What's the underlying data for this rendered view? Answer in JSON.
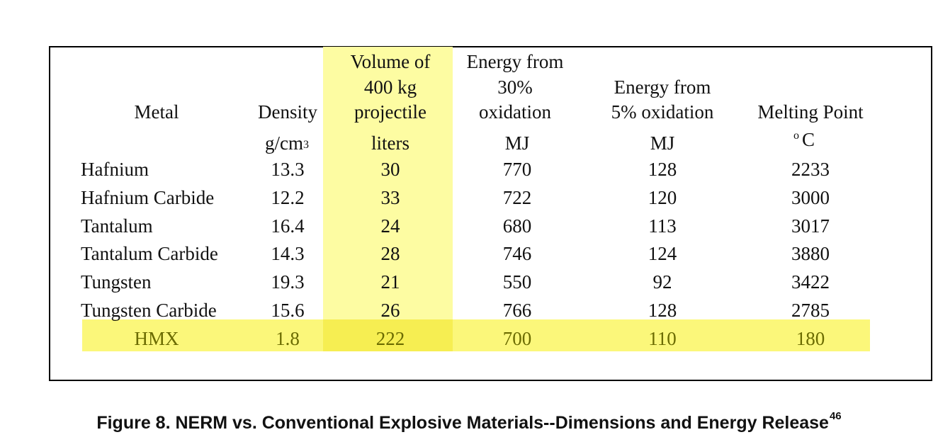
{
  "headers": {
    "metal": "Metal",
    "density": "Density",
    "volume": [
      "Volume of",
      "400 kg",
      "projectile"
    ],
    "energy30": [
      "Energy from",
      "30%",
      "oxidation"
    ],
    "energy5": [
      "Energy from",
      "5% oxidation"
    ],
    "melting": "Melting Point"
  },
  "units": {
    "density_base": "g/cm",
    "density_exp": "3",
    "volume": "liters",
    "energy30": "MJ",
    "energy5": "MJ",
    "melting_deg": "o",
    "melting_c": "C"
  },
  "rows": [
    {
      "metal": "Hafnium",
      "density": "13.3",
      "volume": "30",
      "energy30": "770",
      "energy5": "128",
      "melting": "2233"
    },
    {
      "metal": "Hafnium Carbide",
      "density": "12.2",
      "volume": "33",
      "energy30": "722",
      "energy5": "120",
      "melting": "3000"
    },
    {
      "metal": "Tantalum",
      "density": "16.4",
      "volume": "24",
      "energy30": "680",
      "energy5": "113",
      "melting": "3017"
    },
    {
      "metal": "Tantalum Carbide",
      "density": "14.3",
      "volume": "28",
      "energy30": "746",
      "energy5": "124",
      "melting": "3880"
    },
    {
      "metal": "Tungsten",
      "density": "19.3",
      "volume": "21",
      "energy30": "550",
      "energy5": "92",
      "melting": "3422"
    },
    {
      "metal": "Tungsten Carbide",
      "density": "15.6",
      "volume": "26",
      "energy30": "766",
      "energy5": "128",
      "melting": "2785"
    }
  ],
  "hmx_row": {
    "metal": "HMX",
    "density": "1.8",
    "volume": "222",
    "energy30": "700",
    "energy5": "110",
    "melting": "180"
  },
  "caption": {
    "text": "Figure 8.  NERM vs. Conventional Explosive Materials--Dimensions and Energy Release",
    "footnote": "46"
  },
  "colors": {
    "column_highlight": "#fdfca2",
    "row_highlight": "#fbf77a",
    "hmx_text": "#6b6b00"
  }
}
